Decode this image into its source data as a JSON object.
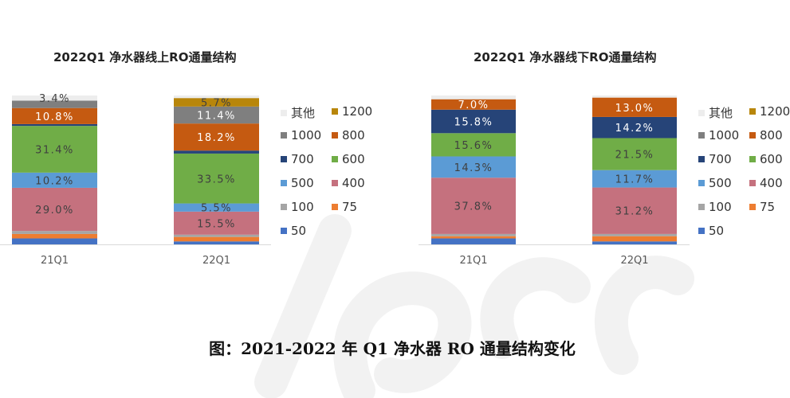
{
  "caption": "图：2021-2022 年 Q1 净水器 RO 通量结构变化",
  "colors": {
    "50": "#4472c4",
    "75": "#ed7d31",
    "100": "#a5a5a5",
    "400": "#c5717e",
    "500": "#5b9bd5",
    "600": "#70ad47",
    "700": "#264478",
    "800": "#c55a11",
    "1000": "#7f7f7f",
    "1200": "#b8860b",
    "其他": "#ededed"
  },
  "chart_data": [
    {
      "type": "bar",
      "stacked": true,
      "percent": true,
      "title": "2022Q1 净水器线上RO通量结构",
      "categories": [
        "21Q1",
        "22Q1"
      ],
      "series": [
        {
          "name": "50",
          "values": [
            4.0,
            2.0
          ]
        },
        {
          "name": "75",
          "values": [
            3.0,
            3.0
          ]
        },
        {
          "name": "100",
          "values": [
            2.0,
            1.5
          ]
        },
        {
          "name": "400",
          "values": [
            29.0,
            15.5
          ]
        },
        {
          "name": "500",
          "values": [
            10.2,
            5.5
          ]
        },
        {
          "name": "600",
          "values": [
            31.4,
            33.5
          ]
        },
        {
          "name": "700",
          "values": [
            1.2,
            2.0
          ]
        },
        {
          "name": "800",
          "values": [
            10.8,
            18.2
          ]
        },
        {
          "name": "1000",
          "values": [
            5.0,
            11.4
          ]
        },
        {
          "name": "1200",
          "values": [
            0.0,
            5.7
          ]
        },
        {
          "name": "其他",
          "values": [
            3.4,
            1.7
          ]
        }
      ],
      "labels": [
        {
          "category": "21Q1",
          "series": "400",
          "text": "29.0%"
        },
        {
          "category": "21Q1",
          "series": "500",
          "text": "10.2%"
        },
        {
          "category": "21Q1",
          "series": "600",
          "text": "31.4%"
        },
        {
          "category": "21Q1",
          "series": "800",
          "text": "10.8%"
        },
        {
          "category": "21Q1",
          "series": "其他",
          "text": "3.4%"
        },
        {
          "category": "22Q1",
          "series": "400",
          "text": "15.5%"
        },
        {
          "category": "22Q1",
          "series": "500",
          "text": "5.5%"
        },
        {
          "category": "22Q1",
          "series": "600",
          "text": "33.5%"
        },
        {
          "category": "22Q1",
          "series": "800",
          "text": "18.2%"
        },
        {
          "category": "22Q1",
          "series": "1000",
          "text": "11.4%"
        },
        {
          "category": "22Q1",
          "series": "1200",
          "text": "5.7%"
        }
      ],
      "legend": [
        "其他",
        "1200",
        "1000",
        "800",
        "700",
        "600",
        "500",
        "400",
        "100",
        "75",
        "50"
      ],
      "legend_position": "right"
    },
    {
      "type": "bar",
      "stacked": true,
      "percent": true,
      "title": "2022Q1 净水器线下RO通量结构",
      "categories": [
        "21Q1",
        "22Q1"
      ],
      "series": [
        {
          "name": "50",
          "values": [
            4.0,
            2.0
          ]
        },
        {
          "name": "75",
          "values": [
            1.5,
            3.5
          ]
        },
        {
          "name": "100",
          "values": [
            1.5,
            1.5
          ]
        },
        {
          "name": "400",
          "values": [
            37.8,
            31.2
          ]
        },
        {
          "name": "500",
          "values": [
            14.3,
            11.7
          ]
        },
        {
          "name": "600",
          "values": [
            15.6,
            21.5
          ]
        },
        {
          "name": "700",
          "values": [
            15.8,
            14.2
          ]
        },
        {
          "name": "800",
          "values": [
            7.0,
            13.0
          ]
        },
        {
          "name": "1000",
          "values": [
            0.0,
            0.0
          ]
        },
        {
          "name": "1200",
          "values": [
            0.0,
            0.0
          ]
        },
        {
          "name": "其他",
          "values": [
            2.5,
            1.4
          ]
        }
      ],
      "labels": [
        {
          "category": "21Q1",
          "series": "400",
          "text": "37.8%"
        },
        {
          "category": "21Q1",
          "series": "500",
          "text": "14.3%"
        },
        {
          "category": "21Q1",
          "series": "600",
          "text": "15.6%"
        },
        {
          "category": "21Q1",
          "series": "700",
          "text": "15.8%"
        },
        {
          "category": "21Q1",
          "series": "800",
          "text": "7.0%"
        },
        {
          "category": "22Q1",
          "series": "400",
          "text": "31.2%"
        },
        {
          "category": "22Q1",
          "series": "500",
          "text": "11.7%"
        },
        {
          "category": "22Q1",
          "series": "600",
          "text": "21.5%"
        },
        {
          "category": "22Q1",
          "series": "700",
          "text": "14.2%"
        },
        {
          "category": "22Q1",
          "series": "800",
          "text": "13.0%"
        }
      ],
      "legend": [
        "其他",
        "1200",
        "1000",
        "800",
        "700",
        "600",
        "500",
        "400",
        "100",
        "75",
        "50"
      ],
      "legend_position": "right"
    }
  ]
}
